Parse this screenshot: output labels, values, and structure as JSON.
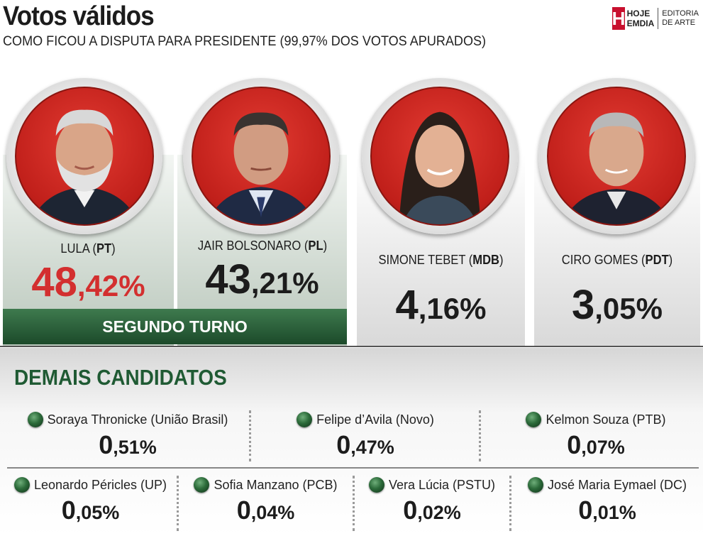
{
  "header": {
    "title": "Votos válidos",
    "subtitle": "COMO FICOU A DISPUTA PARA PRESIDENTE (99,97% DOS VOTOS APURADOS)",
    "logo_letter": "H",
    "logo_name_1": "HOJE",
    "logo_name_2": "EMDIA",
    "logo_ed_1": "EDITORIA",
    "logo_ed_2": "DE ARTE"
  },
  "colors": {
    "accent_red": "#d32f2f",
    "brand_green": "#1f5a33",
    "photo_bg": "#c01f1a"
  },
  "chart_data": {
    "type": "table",
    "title": "Votos válidos",
    "subtitle": "COMO FICOU A DISPUTA PARA PRESIDENTE (99,97% DOS VOTOS APURADOS)",
    "main": [
      {
        "name": "LULA",
        "party": "PT",
        "pct_int": "48",
        "pct_dec": ",42%",
        "value": 48.42,
        "runoff": true
      },
      {
        "name": "JAIR BOLSONARO",
        "party": "PL",
        "pct_int": "43",
        "pct_dec": ",21%",
        "value": 43.21,
        "runoff": true
      },
      {
        "name": "SIMONE TEBET",
        "party": "MDB",
        "pct_int": "4",
        "pct_dec": ",16%",
        "value": 4.16,
        "runoff": false
      },
      {
        "name": "CIRO GOMES",
        "party": "PDT",
        "pct_int": "3",
        "pct_dec": ",05%",
        "value": 3.05,
        "runoff": false
      }
    ],
    "runoff_label": "SEGUNDO TURNO",
    "others_title": "DEMAIS CANDIDATOS",
    "others": [
      {
        "label": "Soraya Thronicke (União Brasil)",
        "pct_int": "0",
        "pct_dec": ",51%",
        "value": 0.51
      },
      {
        "label": "Felipe d’Avila (Novo)",
        "pct_int": "0",
        "pct_dec": ",47%",
        "value": 0.47
      },
      {
        "label": "Kelmon Souza (PTB)",
        "pct_int": "0",
        "pct_dec": ",07%",
        "value": 0.07
      },
      {
        "label": "Leonardo Péricles (UP)",
        "pct_int": "0",
        "pct_dec": ",05%",
        "value": 0.05
      },
      {
        "label": "Sofia Manzano (PCB)",
        "pct_int": "0",
        "pct_dec": ",04%",
        "value": 0.04
      },
      {
        "label": "Vera Lúcia (PSTU)",
        "pct_int": "0",
        "pct_dec": ",02%",
        "value": 0.02
      },
      {
        "label": "José Maria Eymael (DC)",
        "pct_int": "0",
        "pct_dec": ",01%",
        "value": 0.01
      }
    ]
  }
}
